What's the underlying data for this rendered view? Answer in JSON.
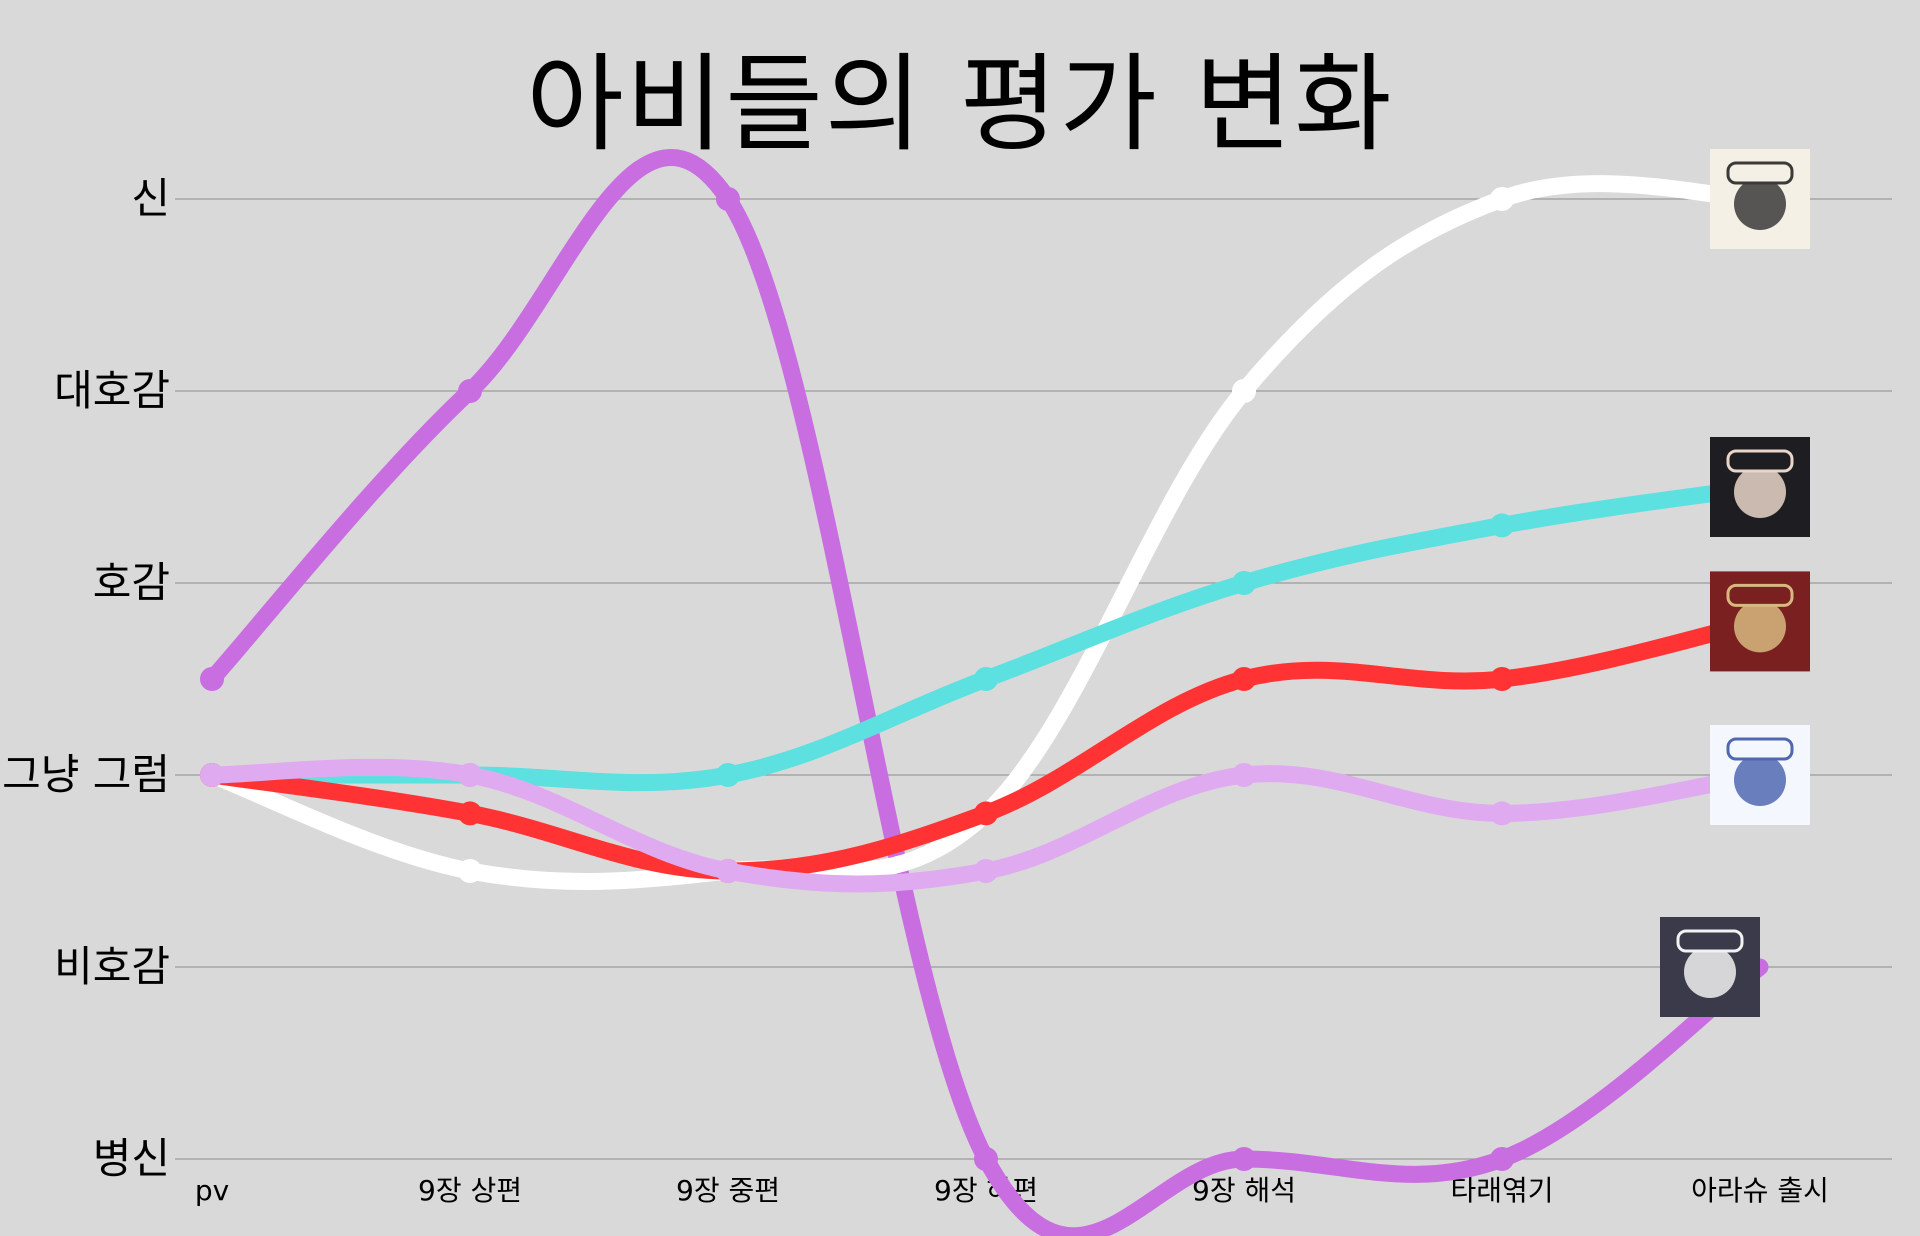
{
  "chart_data": {
    "type": "line",
    "title": "아비들의 평가 변화",
    "categories": [
      "pv",
      "9장 상편",
      "9장 중편",
      "9장 하편",
      "9장 해석",
      "타래엮기",
      "아라슈 출시"
    ],
    "y_levels": [
      "병신",
      "비호감",
      "그냥 그럼",
      "호감",
      "대호감",
      "신"
    ],
    "ylim": [
      0,
      5
    ],
    "grid": true,
    "legend": "none",
    "series": [
      {
        "color": "#c86ee0",
        "icon": "masked-character-icon",
        "values": [
          2.5,
          4,
          5,
          0,
          0,
          0,
          1
        ]
      },
      {
        "color": "#ffffff",
        "icon": "goggles-character-icon",
        "values": [
          2,
          1.5,
          1.5,
          1.8,
          4,
          5,
          5
        ]
      },
      {
        "color": "#5ce0e0",
        "icon": "dark-hair-character-icon",
        "values": [
          2,
          2,
          2,
          2.5,
          3,
          3.3,
          3.5
        ]
      },
      {
        "color": "#ff3333",
        "icon": "red-hat-character-icon",
        "values": [
          2,
          1.8,
          1.5,
          1.8,
          2.5,
          2.5,
          2.8
        ]
      },
      {
        "color": "#e0aaf0",
        "icon": "hooded-character-icon",
        "values": [
          2,
          2,
          1.5,
          1.5,
          2,
          1.8,
          2
        ]
      }
    ]
  }
}
